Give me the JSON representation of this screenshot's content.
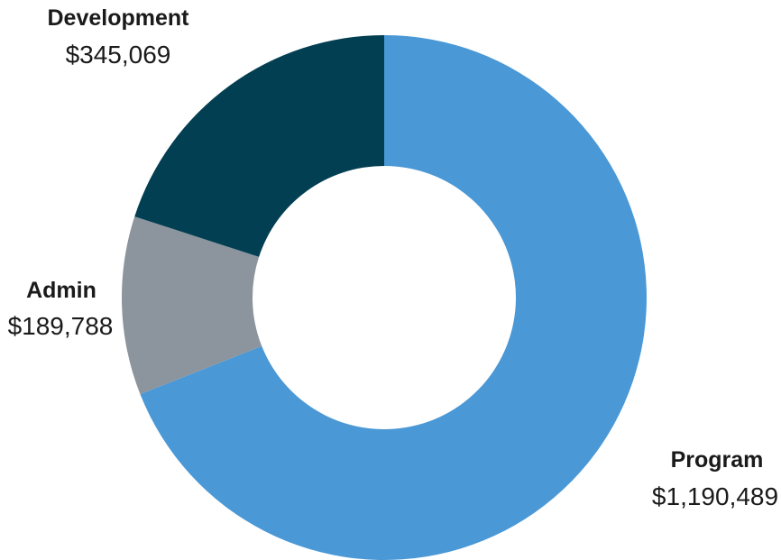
{
  "chart_data": {
    "type": "pie",
    "variant": "donut",
    "categories": [
      "Program",
      "Admin",
      "Development"
    ],
    "values": [
      1190489,
      189788,
      345069
    ],
    "value_labels": [
      "$1,190,489",
      "$189,788",
      "$345,069"
    ],
    "colors": [
      "#4a98d6",
      "#8c959d",
      "#033f52"
    ],
    "legend": "none"
  }
}
